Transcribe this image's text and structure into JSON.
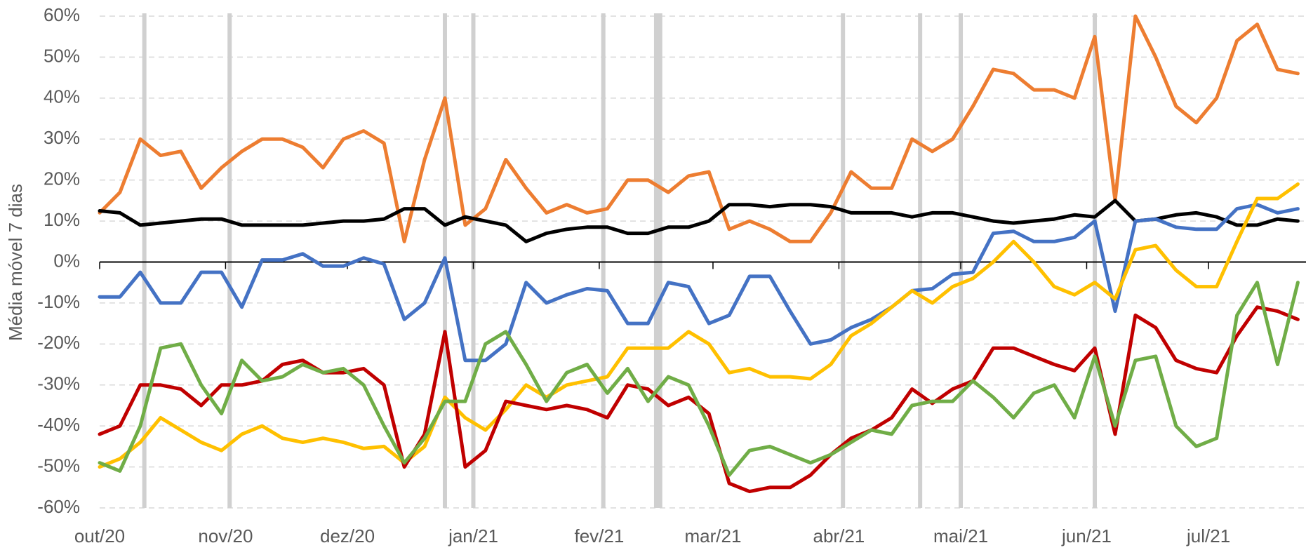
{
  "chart_data": {
    "type": "line",
    "y_label": "Média móvel 7 dias",
    "x": [
      0,
      5,
      10,
      15,
      20,
      25,
      30,
      35,
      40,
      45,
      50,
      55,
      60,
      65,
      70,
      75,
      80,
      85,
      90,
      95,
      100,
      105,
      110,
      115,
      120,
      125,
      130,
      135,
      140,
      145,
      150,
      155,
      160,
      165,
      170,
      175,
      180,
      185,
      190,
      195,
      200,
      205,
      210,
      215,
      220,
      225,
      230,
      235,
      240,
      245,
      250,
      255,
      260,
      265,
      270,
      275,
      280,
      285,
      290,
      295
    ],
    "xlim": [
      0,
      297
    ],
    "xticks": [
      {
        "value": 0,
        "label": "out/20"
      },
      {
        "value": 31,
        "label": "nov/20"
      },
      {
        "value": 61,
        "label": "dez/20"
      },
      {
        "value": 92,
        "label": "jan/21"
      },
      {
        "value": 123,
        "label": "fev/21"
      },
      {
        "value": 151,
        "label": "mar/21"
      },
      {
        "value": 182,
        "label": "abr/21"
      },
      {
        "value": 212,
        "label": "mai/21"
      },
      {
        "value": 243,
        "label": "jun/21"
      },
      {
        "value": 273,
        "label": "jul/21"
      }
    ],
    "ylim": [
      -60,
      60
    ],
    "yticks": [
      {
        "value": -60,
        "label": "-60%"
      },
      {
        "value": -50,
        "label": "-50%"
      },
      {
        "value": -40,
        "label": "-40%"
      },
      {
        "value": -30,
        "label": "-30%"
      },
      {
        "value": -20,
        "label": "-20%"
      },
      {
        "value": -10,
        "label": "-10%"
      },
      {
        "value": 0,
        "label": "0%"
      },
      {
        "value": 10,
        "label": "10%"
      },
      {
        "value": 20,
        "label": "20%"
      },
      {
        "value": 30,
        "label": "30%"
      },
      {
        "value": 40,
        "label": "40%"
      },
      {
        "value": 50,
        "label": "50%"
      },
      {
        "value": 60,
        "label": "60%"
      }
    ],
    "grid": true,
    "highlight_x": [
      11,
      32,
      85,
      92,
      124,
      137,
      138,
      183,
      202,
      212,
      245
    ],
    "highlight_color": "#d0d0d0",
    "series": [
      {
        "color": "#ED7D31",
        "values": [
          12,
          17,
          30,
          26,
          27,
          18,
          23,
          27,
          30,
          30,
          28,
          23,
          30,
          32,
          29,
          5,
          25,
          40,
          9,
          13,
          25,
          18,
          12,
          14,
          12,
          13,
          20,
          20,
          17,
          21,
          22,
          8,
          10,
          8,
          5,
          5,
          12,
          22,
          18,
          18,
          30,
          27,
          30,
          38,
          47,
          46,
          42,
          42,
          40,
          55,
          15,
          60,
          50,
          38,
          34,
          40,
          54,
          58,
          47,
          46
        ]
      },
      {
        "color": "#000000",
        "values": [
          12.5,
          12,
          9,
          9.5,
          10,
          10.5,
          10.5,
          9,
          9,
          9,
          9,
          9.5,
          10,
          10,
          10.5,
          13,
          13,
          9,
          11,
          10,
          9,
          5,
          7,
          8,
          8.5,
          8.5,
          7,
          7,
          8.5,
          8.5,
          10,
          14,
          14,
          13.5,
          14,
          14,
          13.5,
          12,
          12,
          12,
          11,
          12,
          12,
          11,
          10,
          9.5,
          10,
          10.5,
          11.5,
          11,
          15,
          10,
          10.5,
          11.5,
          12,
          11,
          9,
          9,
          10.5,
          10
        ]
      },
      {
        "color": "#4472C4",
        "values": [
          -8.5,
          -8.5,
          -2.5,
          -10,
          -10,
          -2.5,
          -2.5,
          -11,
          0.5,
          0.5,
          2,
          -1,
          -1,
          1,
          -0.5,
          -14,
          -10,
          1,
          -24,
          -24,
          -20,
          -5,
          -10,
          -8,
          -6.5,
          -7,
          -15,
          -15,
          -5,
          -6,
          -15,
          -13,
          -3.5,
          -3.5,
          -12,
          -20,
          -19,
          -16,
          -14,
          -11,
          -7,
          -6.5,
          -3,
          -2.5,
          7,
          7.5,
          5,
          5,
          6,
          10,
          -12,
          10,
          10.5,
          8.5,
          8,
          8,
          13,
          14,
          12,
          13
        ]
      },
      {
        "color": "#FFC000",
        "values": [
          -50,
          -48,
          -44,
          -38,
          -41,
          -44,
          -46,
          -42,
          -40,
          -43,
          -44,
          -43,
          -44,
          -45.5,
          -45,
          -49,
          -45,
          -33,
          -38,
          -41,
          -36,
          -30,
          -33,
          -30,
          -29,
          -28,
          -21,
          -21,
          -21,
          -17,
          -20,
          -27,
          -26,
          -28,
          -28,
          -28.5,
          -25,
          -18,
          -15,
          -11,
          -7,
          -10,
          -6,
          -4,
          0,
          5,
          0,
          -6,
          -8,
          -5,
          -9,
          3,
          4,
          -2,
          -6,
          -6,
          5,
          15.5,
          15.5,
          19
        ]
      },
      {
        "color": "#C00000",
        "values": [
          -42,
          -40,
          -30,
          -30,
          -31,
          -35,
          -30,
          -30,
          -29,
          -25,
          -24,
          -27,
          -27,
          -26,
          -30,
          -50,
          -42,
          -17,
          -50,
          -46,
          -34,
          -35,
          -36,
          -35,
          -36,
          -38,
          -30,
          -31,
          -35,
          -33,
          -37,
          -54,
          -56,
          -55,
          -55,
          -52,
          -47,
          -43,
          -41,
          -38,
          -31,
          -34.5,
          -31,
          -29,
          -21,
          -21,
          -23,
          -25,
          -26.5,
          -21,
          -42,
          -13,
          -16,
          -24,
          -26,
          -27,
          -18,
          -11,
          -12,
          -14
        ]
      },
      {
        "color": "#70AD47",
        "values": [
          -49,
          -51,
          -40,
          -21,
          -20,
          -30,
          -37,
          -24,
          -29,
          -28,
          -25,
          -27,
          -26,
          -30,
          -40,
          -49,
          -43,
          -34,
          -34,
          -20,
          -17,
          -25,
          -34,
          -27,
          -25,
          -32,
          -26,
          -34,
          -28,
          -30,
          -40,
          -52,
          -46,
          -45,
          -47,
          -49,
          -47,
          -44,
          -41,
          -42,
          -35,
          -34,
          -34,
          -29,
          -33,
          -38,
          -32,
          -30,
          -38,
          -23,
          -40,
          -24,
          -23,
          -40,
          -45,
          -43,
          -13,
          -5,
          -25,
          -5
        ]
      }
    ]
  }
}
